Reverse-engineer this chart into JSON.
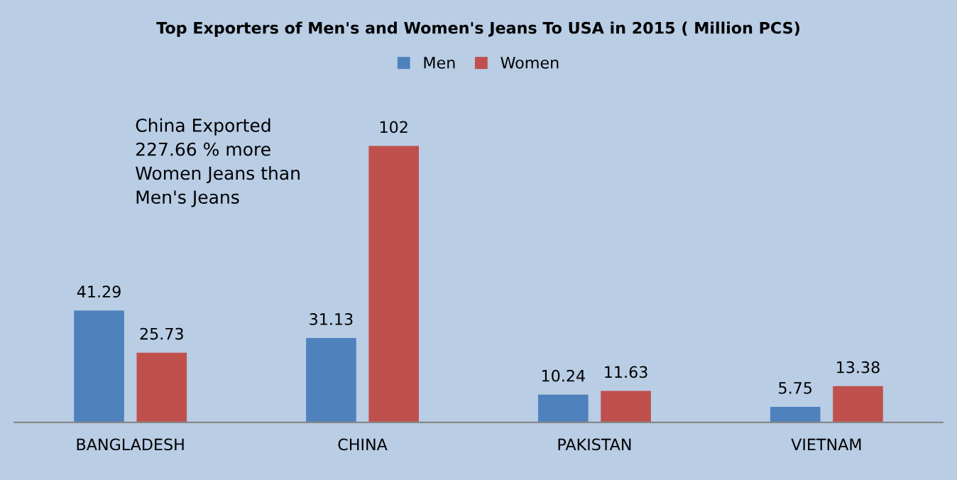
{
  "chart_data": {
    "type": "bar",
    "title": "Top Exporters of Men's and Women's Jeans To USA in 2015 ( Million PCS)",
    "categories": [
      "BANGLADESH",
      "CHINA",
      "PAKISTAN",
      "VIETNAM"
    ],
    "series": [
      {
        "name": "Men",
        "color": "#4f81bd",
        "values": [
          41.29,
          31.13,
          10.24,
          5.75
        ]
      },
      {
        "name": "Women",
        "color": "#c0504d",
        "values": [
          25.73,
          102,
          11.63,
          13.38
        ]
      }
    ],
    "data_labels": true,
    "legend": "top",
    "grid": false,
    "annotations": [
      "China Exported\n227.66 % more\nWomen Jeans than\nMen's Jeans"
    ]
  }
}
